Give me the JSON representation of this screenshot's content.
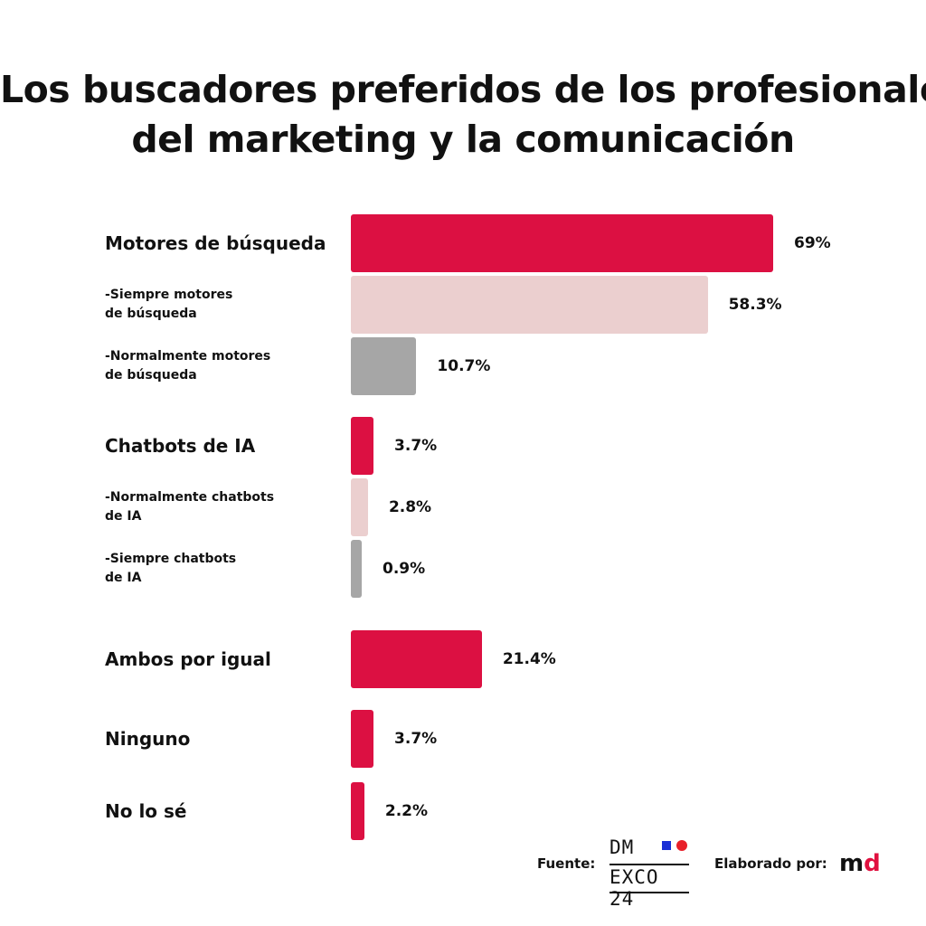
{
  "title_lines": [
    "Los buscadores preferidos de los profesionales",
    "del marketing y la comunicación"
  ],
  "colors": {
    "primary": "#dc1042",
    "light": "#ebcfcf",
    "gray": "#a6a6a6"
  },
  "chart_data": {
    "type": "bar",
    "orientation": "horizontal",
    "title": "Los buscadores preferidos de los profesionales del marketing y la comunicación",
    "xlim": [
      0,
      69
    ],
    "rows": [
      {
        "label": [
          "Motores de búsqueda"
        ],
        "value": 69,
        "display": "69%",
        "level": "category",
        "color": "primary"
      },
      {
        "label": [
          "-Siempre motores",
          "de búsqueda"
        ],
        "value": 58.3,
        "display": "58.3%",
        "level": "sub",
        "color": "light"
      },
      {
        "label": [
          "-Normalmente motores",
          "de búsqueda"
        ],
        "value": 10.7,
        "display": "10.7%",
        "level": "sub",
        "color": "gray"
      },
      {
        "label": [
          "Chatbots de IA"
        ],
        "value": 3.7,
        "display": "3.7%",
        "level": "category",
        "color": "primary"
      },
      {
        "label": [
          "-Normalmente chatbots",
          "de IA"
        ],
        "value": 2.8,
        "display": "2.8%",
        "level": "sub",
        "color": "light"
      },
      {
        "label": [
          "-Siempre chatbots",
          "de IA"
        ],
        "value": 0.9,
        "display": "0.9%",
        "level": "sub",
        "color": "gray"
      },
      {
        "label": [
          "Ambos por igual"
        ],
        "value": 21.4,
        "display": "21.4%",
        "level": "category",
        "color": "primary"
      },
      {
        "label": [
          "Ninguno"
        ],
        "value": 3.7,
        "display": "3.7%",
        "level": "category",
        "color": "primary"
      },
      {
        "label": [
          "No lo sé"
        ],
        "value": 2.2,
        "display": "2.2%",
        "level": "category",
        "color": "primary"
      }
    ]
  },
  "footer": {
    "source_label": "Fuente:",
    "source_logo_top": "DM",
    "source_logo_bottom": "EXCO 24",
    "made_by_label": "Elaborado por:",
    "made_by_logo_m": "m",
    "made_by_logo_d": "d"
  }
}
